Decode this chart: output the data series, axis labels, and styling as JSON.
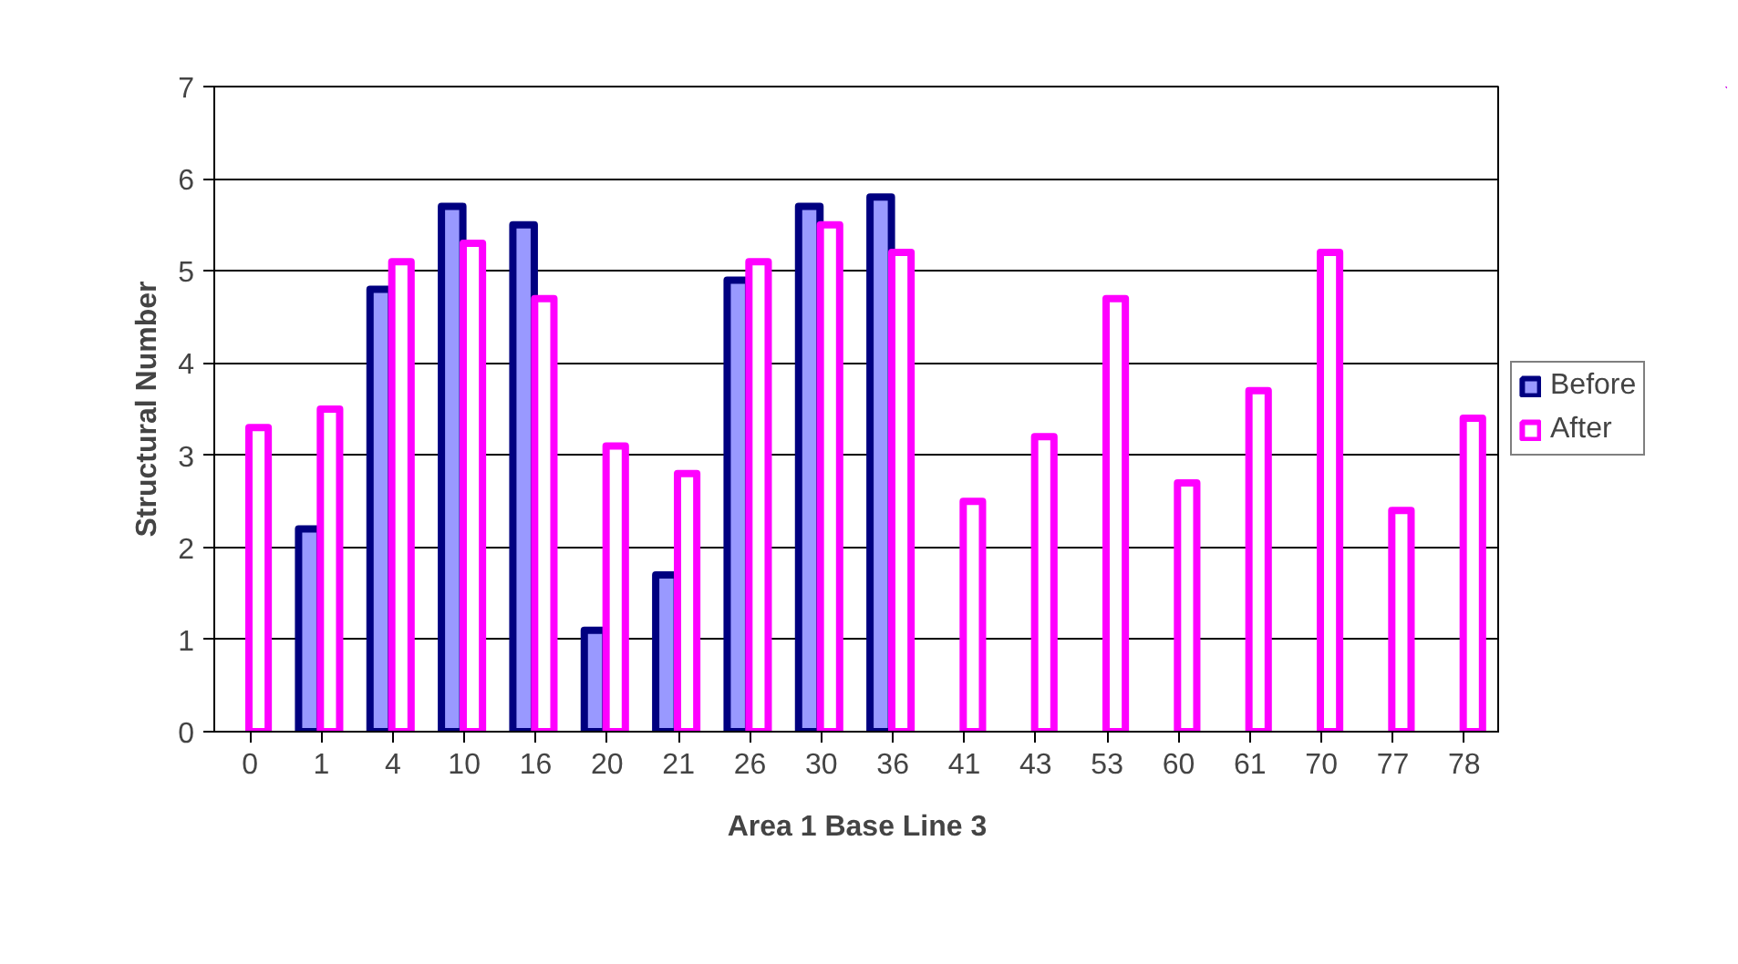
{
  "chart_data": {
    "type": "bar",
    "xlabel": "Area 1 Base Line 3",
    "ylabel": "Structural Number",
    "categories": [
      "0",
      "1",
      "4",
      "10",
      "16",
      "20",
      "21",
      "26",
      "30",
      "36",
      "41",
      "43",
      "53",
      "60",
      "61",
      "70",
      "77",
      "78"
    ],
    "series": [
      {
        "name": "Before",
        "color": "#9999ff",
        "values": [
          null,
          2.2,
          4.8,
          5.7,
          5.5,
          1.1,
          1.7,
          4.9,
          5.7,
          5.8,
          null,
          null,
          null,
          null,
          null,
          null,
          null,
          null
        ]
      },
      {
        "name": "After",
        "color": "#ff00ff",
        "values": [
          3.3,
          3.5,
          5.1,
          5.3,
          4.7,
          3.1,
          2.8,
          5.1,
          5.5,
          5.2,
          2.5,
          3.2,
          4.7,
          2.7,
          3.7,
          5.2,
          2.4,
          3.4
        ]
      }
    ],
    "ylim": [
      0,
      7
    ],
    "yticks": [
      0,
      1,
      2,
      3,
      4,
      5,
      6,
      7
    ],
    "grid": "y",
    "legend": "right"
  }
}
